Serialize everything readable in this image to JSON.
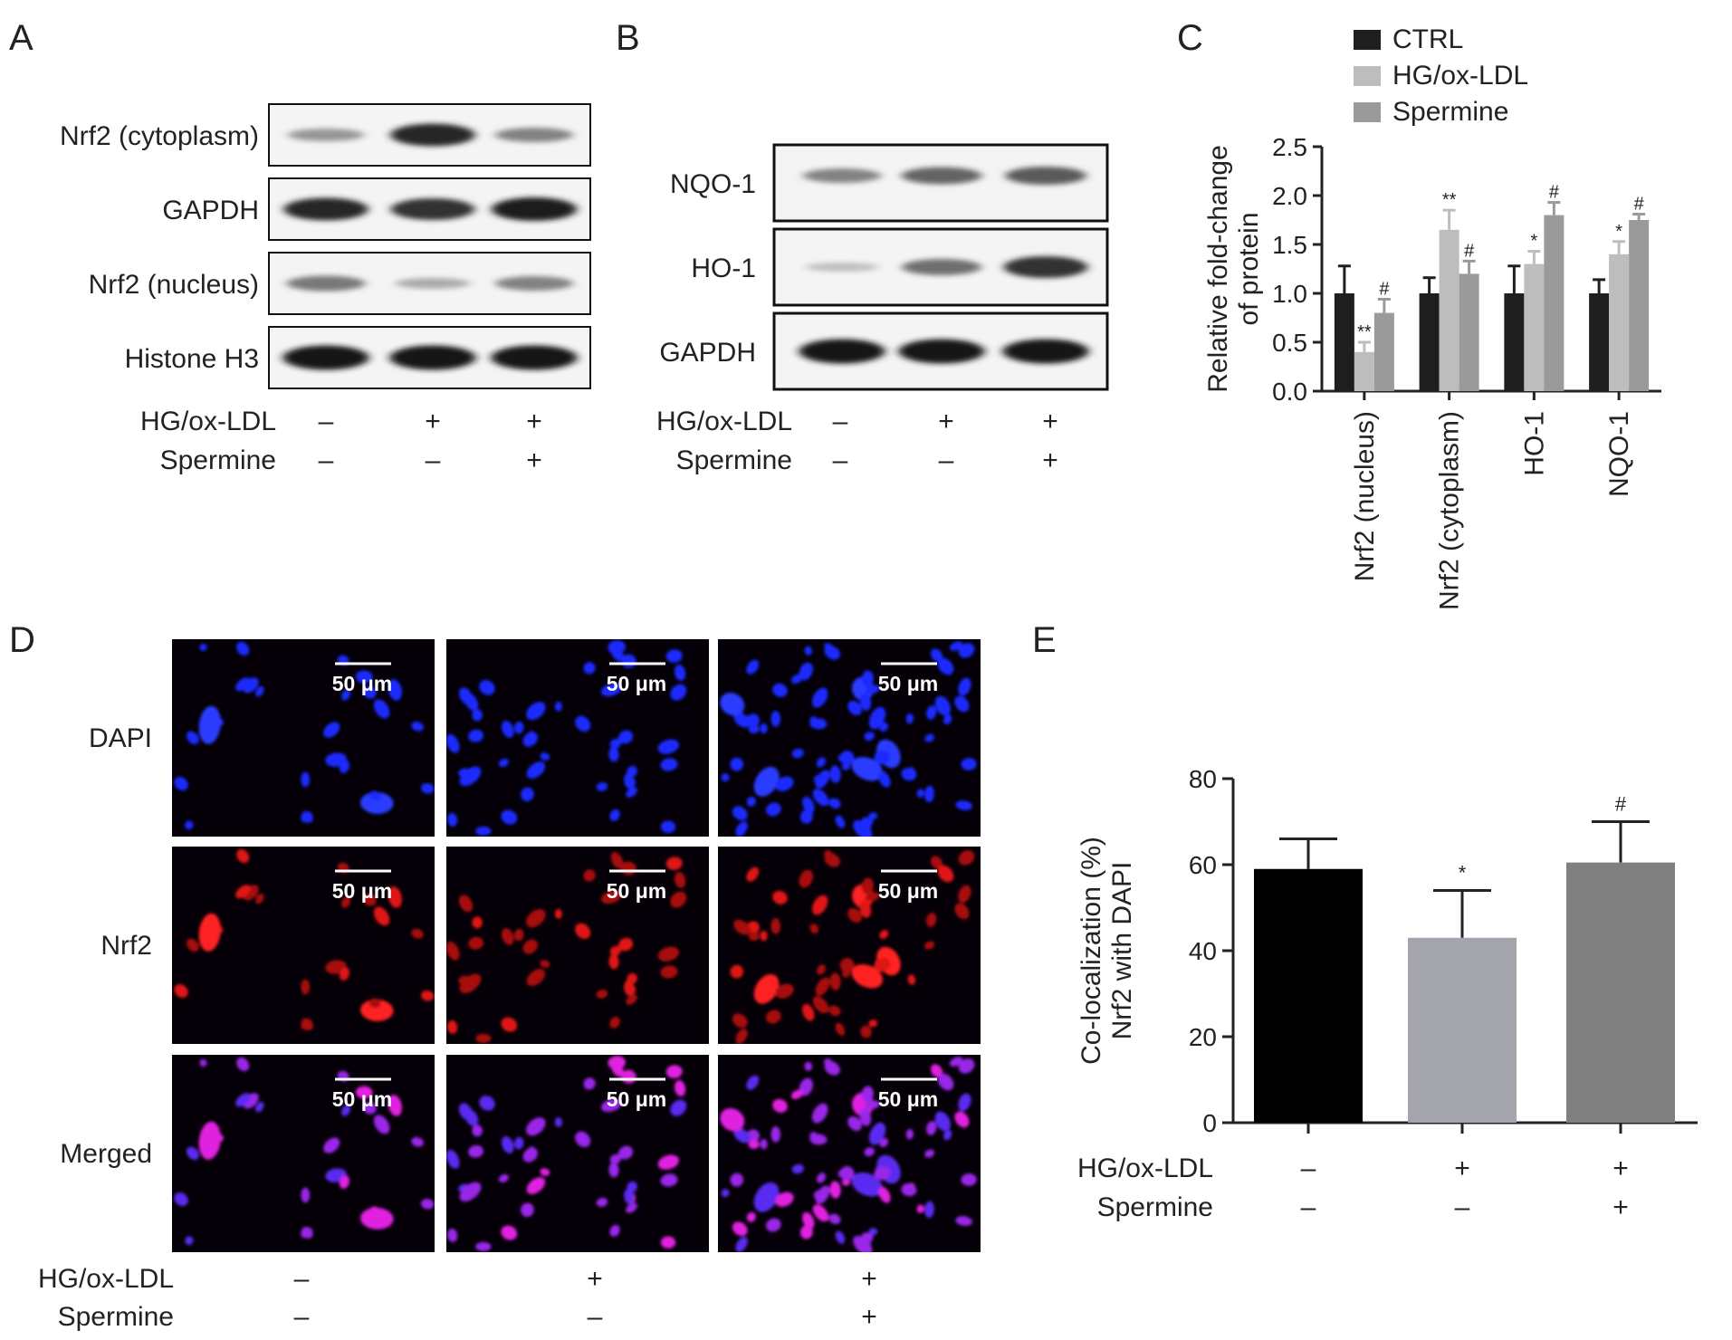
{
  "panels": {
    "a": {
      "letter": "A",
      "bands": [
        "Nrf2 (cytoplasm)",
        "GAPDH",
        "Nrf2 (nucleus)",
        "Histone H3"
      ],
      "band_strength": [
        [
          0.3,
          0.85,
          0.4
        ],
        [
          0.85,
          0.8,
          0.9
        ],
        [
          0.45,
          0.2,
          0.4
        ],
        [
          0.95,
          0.95,
          0.95
        ]
      ]
    },
    "b": {
      "letter": "B",
      "bands": [
        "NQO-1",
        "HO-1",
        "GAPDH"
      ],
      "band_strength": [
        [
          0.4,
          0.55,
          0.6
        ],
        [
          0.1,
          0.5,
          0.8
        ],
        [
          0.95,
          0.95,
          0.95
        ]
      ]
    },
    "c": {
      "letter": "C"
    },
    "d": {
      "letter": "D",
      "rows": [
        "DAPI",
        "Nrf2",
        "Merged"
      ],
      "scale_bar": "50 μm",
      "cell_counts": [
        [
          26,
          42,
          72
        ],
        [
          22,
          35,
          48
        ],
        [
          26,
          42,
          72
        ]
      ]
    },
    "e": {
      "letter": "E"
    }
  },
  "conditions": {
    "label_hg": "HG/ox-LDL",
    "label_spermine": "Spermine",
    "hg": [
      "–",
      "+",
      "+"
    ],
    "spermine": [
      "–",
      "–",
      "+"
    ]
  },
  "chart_data": [
    {
      "type": "bar",
      "panel": "C",
      "categories": [
        "Nrf2 (nucleus)",
        "Nrf2 (cytoplasm)",
        "HO-1",
        "NQO-1"
      ],
      "series": [
        {
          "name": "CTRL",
          "color": "#1e1e1e",
          "values": [
            1.0,
            1.0,
            1.0,
            1.0
          ],
          "errors": [
            0.28,
            0.16,
            0.28,
            0.14
          ],
          "marks": [
            "",
            "",
            "",
            ""
          ]
        },
        {
          "name": "HG/ox-LDL",
          "color": "#bdbdbd",
          "values": [
            0.4,
            1.65,
            1.3,
            1.4
          ],
          "errors": [
            0.1,
            0.2,
            0.13,
            0.13
          ],
          "marks": [
            "**",
            "**",
            "*",
            "*"
          ]
        },
        {
          "name": "Spermine",
          "color": "#9a9a9a",
          "values": [
            0.8,
            1.2,
            1.8,
            1.75
          ],
          "errors": [
            0.14,
            0.13,
            0.13,
            0.06
          ],
          "marks": [
            "#",
            "#",
            "#",
            "#"
          ]
        }
      ],
      "ylabel": "Relative fold-change\nof protein",
      "ylim": [
        0,
        2.5
      ],
      "yticks": [
        "0.0",
        "0.5",
        "1.0",
        "1.5",
        "2.0",
        "2.5"
      ],
      "legend": "top-left"
    },
    {
      "type": "bar",
      "panel": "E",
      "values": [
        59,
        43,
        60.5
      ],
      "errors": [
        7,
        11,
        9.5
      ],
      "marks": [
        "",
        "*",
        "#"
      ],
      "colors": [
        "#000000",
        "#a4a4ac",
        "#808080"
      ],
      "ylabel": "Co-localization (%)\nNrf2 with DAPI",
      "ylim": [
        0,
        80
      ],
      "yticks": [
        "0",
        "20",
        "40",
        "60",
        "80"
      ]
    }
  ]
}
